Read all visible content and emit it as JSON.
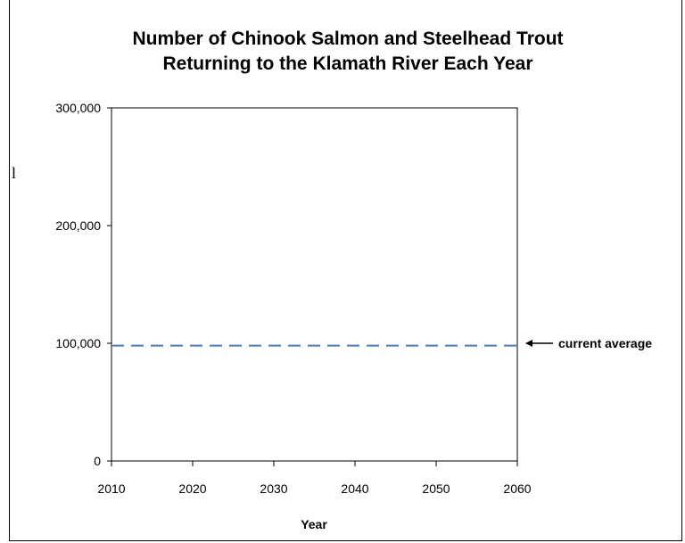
{
  "chart_data": {
    "type": "line",
    "title_lines": [
      "Number of Chinook Salmon and Steelhead Trout",
      "Returning to the Klamath River Each Year"
    ],
    "xlabel": "Year",
    "ylabel": "",
    "x_ticks": [
      2010,
      2020,
      2030,
      2040,
      2050,
      2060
    ],
    "y_ticks": [
      0,
      100000,
      200000,
      300000
    ],
    "y_tick_labels": [
      "0",
      "100,000",
      "200,000",
      "300,000"
    ],
    "xlim": [
      2010,
      2060
    ],
    "ylim": [
      0,
      300000
    ],
    "grid": false,
    "series": [
      {
        "name": "current average",
        "style": "dashed",
        "color": "#4a7ebb",
        "x": [
          2010,
          2060
        ],
        "values": [
          98000,
          98000
        ]
      }
    ],
    "annotations": [
      {
        "text": "current average",
        "arrow": "left",
        "y": 98000
      }
    ],
    "stray_mark": "l"
  }
}
